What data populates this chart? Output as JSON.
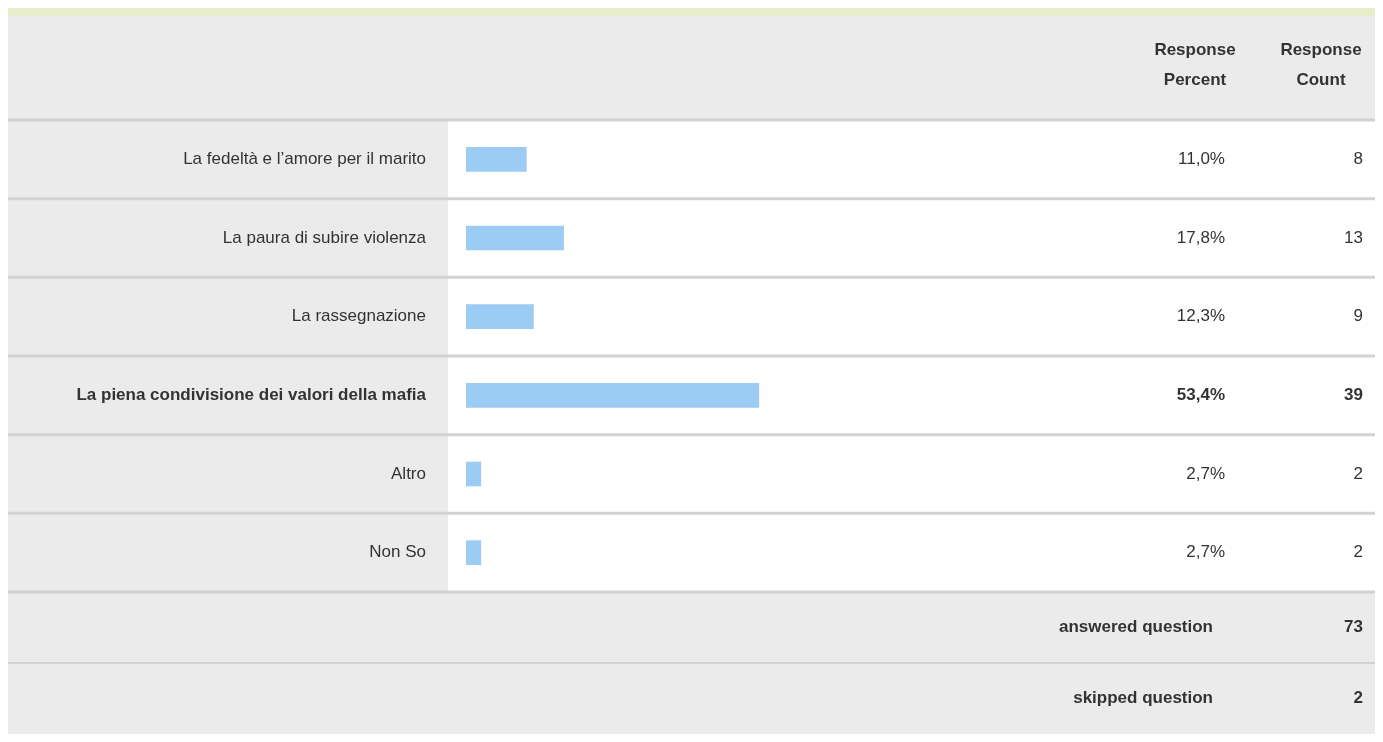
{
  "chart_data": {
    "type": "bar",
    "orientation": "horizontal",
    "categories": [
      "La fedeltà e l’amore per il marito",
      "La paura di subire violenza",
      "La rassegnazione",
      "La piena condivisione dei valori della mafia",
      "Altro",
      "Non So"
    ],
    "series": [
      {
        "color": "#9ccbf3",
        "values": [
          11.0,
          17.8,
          12.3,
          53.4,
          2.7,
          2.7
        ],
        "value_labels": [
          "11,0%",
          "17,8%",
          "12,3%",
          "53,4%",
          "2,7%",
          "2,7%"
        ]
      }
    ],
    "tick_labels": "y",
    "annotations": [
      "Response Percent",
      "Response Count",
      "8",
      "13",
      "9",
      "39",
      "2",
      "2",
      "answered question",
      "73",
      "skipped question",
      "2"
    ]
  }
}
